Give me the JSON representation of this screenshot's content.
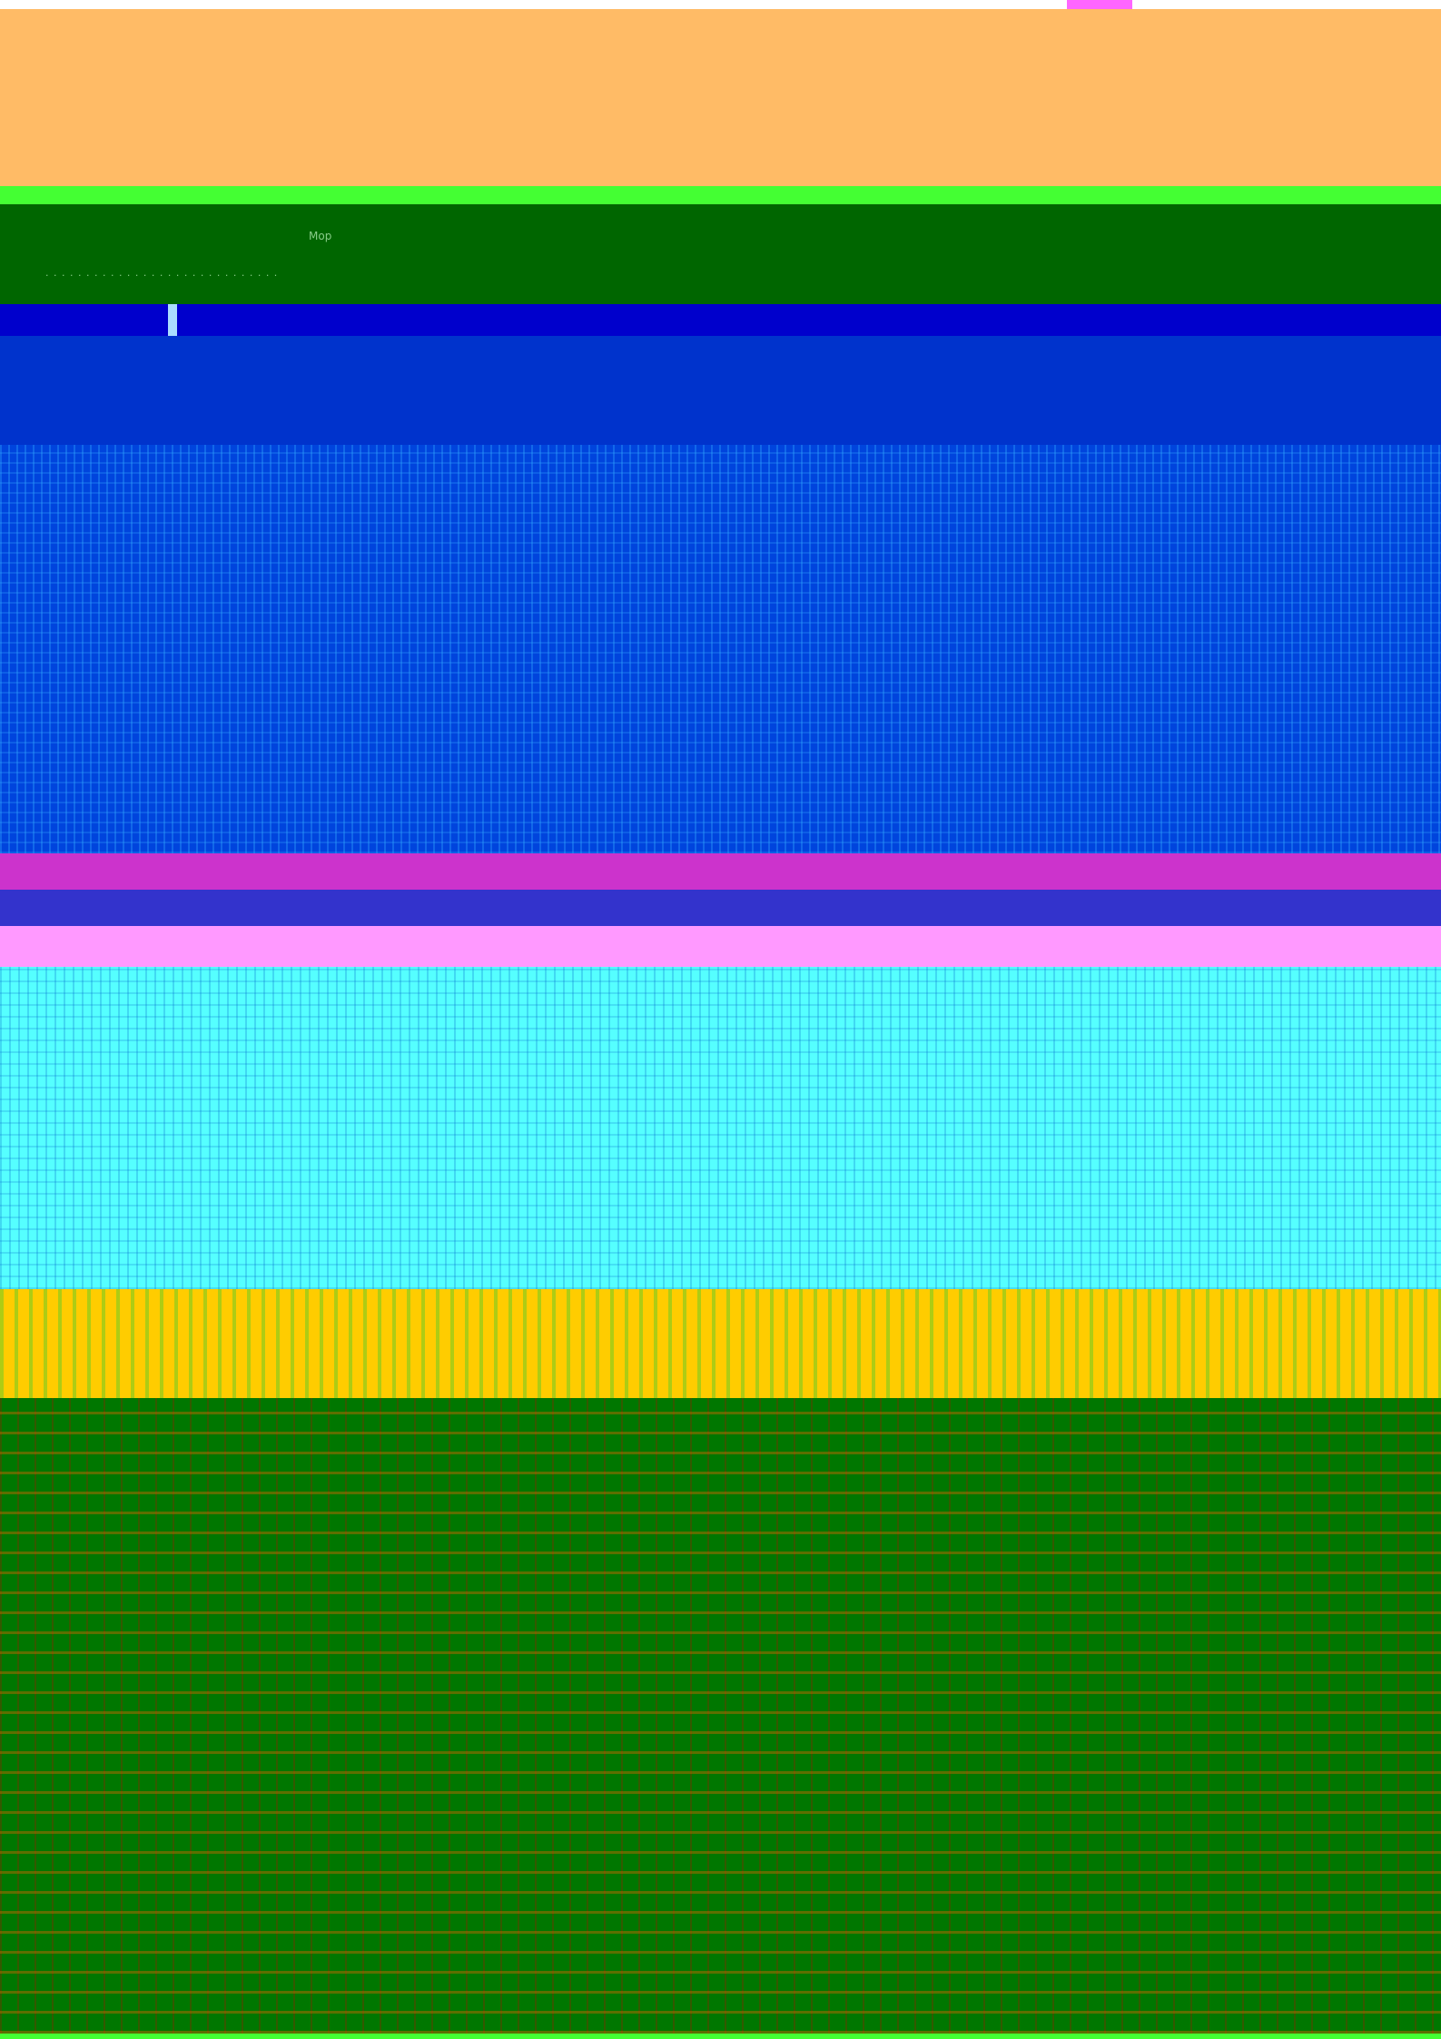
{
  "topbar": {
    "accent_color": "#ff66ff"
  },
  "banner": {
    "color": "#ffbb66"
  },
  "green_strip": {
    "color": "#44ff33"
  },
  "dark_green": {
    "color": "#006600",
    "text_1": "Mop",
    "text_2": "  ·  ·  ·  ·  ·  ·  ·  ·  · ·  ·  ·  ·  ·  ·  ·  ·  ·  ·  ·  ·  ·  ·  ·  ·  ·  ·  ·  ·"
  },
  "blue_band_1": {
    "color": "#0000cc"
  },
  "blue_band_2": {
    "color": "#0033cc",
    "text": ""
  },
  "blue_band_3": {
    "color": "#0044dd"
  },
  "magenta_band": {
    "color": "#cc33cc"
  },
  "purple_band": {
    "color": "#3333cc"
  },
  "pink_band": {
    "color": "#ff99ff"
  },
  "cyan_band": {
    "color": "#55ffff"
  },
  "orange_band": {
    "color": "#ffcc00"
  },
  "forest_band": {
    "color": "#007700",
    "text": ""
  }
}
